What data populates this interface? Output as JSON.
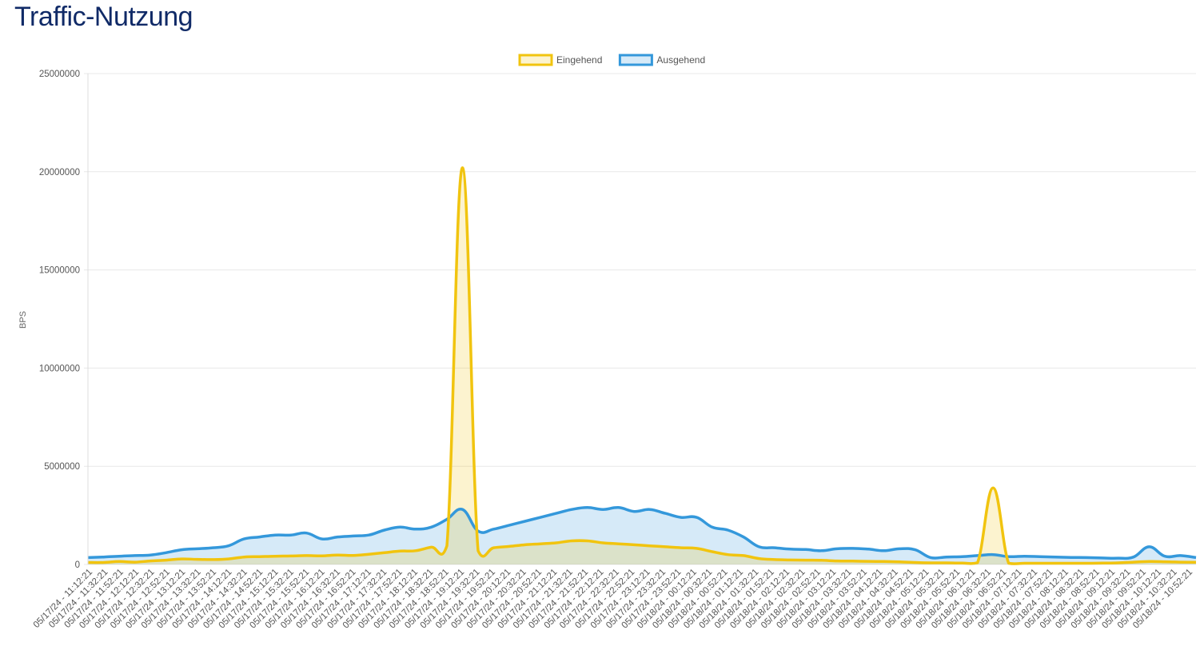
{
  "page": {
    "title": "Traffic-Nutzung"
  },
  "colors": {
    "incoming": "#f1c40f",
    "outgoing": "#3498db",
    "grid": "#e8e8e8",
    "title": "#102a67"
  },
  "chart_data": {
    "type": "area",
    "title": "",
    "xlabel": "",
    "ylabel": "BPS",
    "ylim": [
      0,
      25000000
    ],
    "yticks": [
      0,
      5000000,
      10000000,
      15000000,
      20000000,
      25000000
    ],
    "ytick_labels": [
      "0",
      "5000000",
      "10000000",
      "15000000",
      "20000000",
      "25000000"
    ],
    "legend_position": "top-center",
    "grid": true,
    "x_tick_labels": [
      "05/17/24 - 11:12:21",
      "05/17/24 - 11:32:21",
      "05/17/24 - 11:52:21",
      "05/17/24 - 12:12:21",
      "05/17/24 - 12:32:21",
      "05/17/24 - 12:52:21",
      "05/17/24 - 13:12:21",
      "05/17/24 - 13:32:21",
      "05/17/24 - 13:52:21",
      "05/17/24 - 14:12:21",
      "05/17/24 - 14:32:21",
      "05/17/24 - 14:52:21",
      "05/17/24 - 15:12:21",
      "05/17/24 - 15:32:21",
      "05/17/24 - 15:52:21",
      "05/17/24 - 16:12:21",
      "05/17/24 - 16:32:21",
      "05/17/24 - 16:52:21",
      "05/17/24 - 17:12:21",
      "05/17/24 - 17:32:21",
      "05/17/24 - 17:52:21",
      "05/17/24 - 18:12:21",
      "05/17/24 - 18:32:21",
      "05/17/24 - 18:52:21",
      "05/17/24 - 19:12:21",
      "05/17/24 - 19:32:21",
      "05/17/24 - 19:52:21",
      "05/17/24 - 20:12:21",
      "05/17/24 - 20:32:21",
      "05/17/24 - 20:52:21",
      "05/17/24 - 21:12:21",
      "05/17/24 - 21:32:21",
      "05/17/24 - 21:52:21",
      "05/17/24 - 22:12:21",
      "05/17/24 - 22:32:21",
      "05/17/24 - 22:52:21",
      "05/17/24 - 23:12:21",
      "05/17/24 - 23:32:21",
      "05/17/24 - 23:52:21",
      "05/18/24 - 00:12:21",
      "05/18/24 - 00:32:21",
      "05/18/24 - 00:52:21",
      "05/18/24 - 01:12:21",
      "05/18/24 - 01:32:21",
      "05/18/24 - 01:52:21",
      "05/18/24 - 02:12:21",
      "05/18/24 - 02:32:21",
      "05/18/24 - 02:52:21",
      "05/18/24 - 03:12:21",
      "05/18/24 - 03:32:21",
      "05/18/24 - 03:52:21",
      "05/18/24 - 04:12:21",
      "05/18/24 - 04:32:21",
      "05/18/24 - 04:52:21",
      "05/18/24 - 05:12:21",
      "05/18/24 - 05:32:21",
      "05/18/24 - 05:52:21",
      "05/18/24 - 06:12:21",
      "05/18/24 - 06:32:21",
      "05/18/24 - 06:52:21",
      "05/18/24 - 07:12:21",
      "05/18/24 - 07:32:21",
      "05/18/24 - 07:52:21",
      "05/18/24 - 08:12:21",
      "05/18/24 - 08:32:21",
      "05/18/24 - 08:52:21",
      "05/18/24 - 09:12:21",
      "05/18/24 - 09:32:21",
      "05/18/24 - 09:52:21",
      "05/18/24 - 10:12:21",
      "05/18/24 - 10:32:21",
      "05/18/24 - 10:52:21"
    ],
    "series": [
      {
        "name": "Eingehend",
        "color": "#f1c40f",
        "values": [
          100000,
          100000,
          150000,
          120000,
          180000,
          220000,
          280000,
          260000,
          250000,
          280000,
          380000,
          400000,
          420000,
          430000,
          450000,
          440000,
          480000,
          460000,
          520000,
          600000,
          680000,
          700000,
          880000,
          950000,
          20200000,
          700000,
          850000,
          920000,
          1000000,
          1050000,
          1100000,
          1200000,
          1200000,
          1100000,
          1050000,
          1000000,
          950000,
          900000,
          850000,
          820000,
          650000,
          500000,
          450000,
          300000,
          250000,
          230000,
          220000,
          210000,
          180000,
          170000,
          160000,
          150000,
          130000,
          100000,
          80000,
          80000,
          70000,
          90000,
          3900000,
          60000,
          60000,
          60000,
          60000,
          60000,
          60000,
          70000,
          80000,
          120000,
          150000,
          140000,
          120000,
          110000
        ]
      },
      {
        "name": "Ausgehend",
        "color": "#3498db",
        "values": [
          350000,
          380000,
          420000,
          450000,
          480000,
          600000,
          750000,
          800000,
          850000,
          950000,
          1300000,
          1400000,
          1500000,
          1500000,
          1600000,
          1300000,
          1400000,
          1450000,
          1500000,
          1750000,
          1900000,
          1800000,
          1900000,
          2300000,
          2800000,
          1700000,
          1800000,
          2000000,
          2200000,
          2400000,
          2600000,
          2800000,
          2900000,
          2800000,
          2900000,
          2700000,
          2800000,
          2600000,
          2400000,
          2400000,
          1900000,
          1750000,
          1400000,
          900000,
          850000,
          780000,
          760000,
          700000,
          800000,
          820000,
          780000,
          700000,
          800000,
          750000,
          350000,
          380000,
          400000,
          450000,
          500000,
          400000,
          420000,
          400000,
          380000,
          360000,
          350000,
          330000,
          320000,
          380000,
          900000,
          420000,
          450000,
          350000
        ]
      }
    ]
  }
}
